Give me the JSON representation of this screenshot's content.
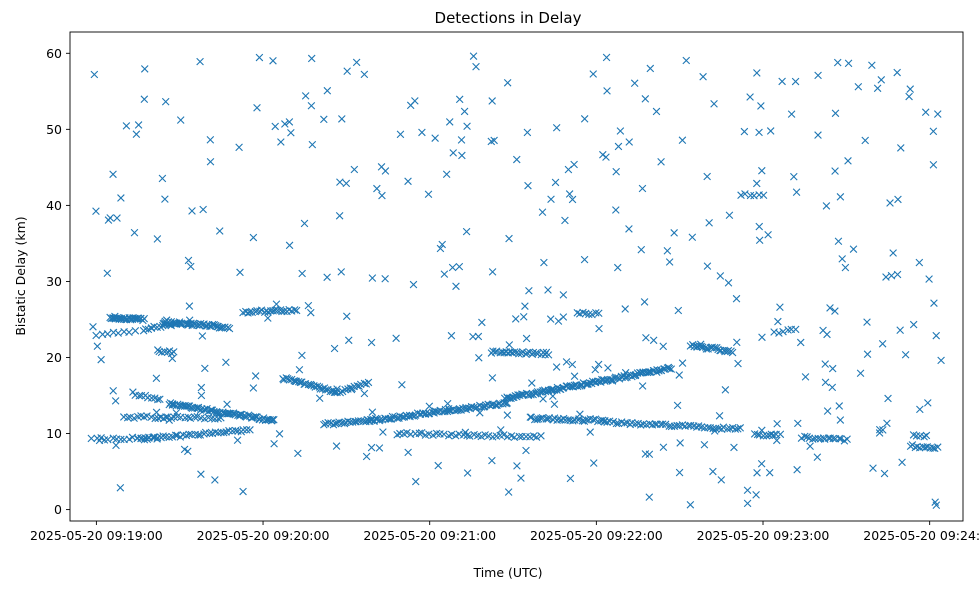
{
  "chart_data": {
    "type": "scatter",
    "title": "Detections in Delay",
    "xlabel": "Time (UTC)",
    "ylabel": "Bistatic Delay (km)",
    "marker": "x",
    "color": "#1f77b4",
    "x_unit": "seconds since 2025-05-20 09:19:00",
    "xlim": [
      -9.5,
      312
    ],
    "ylim": [
      -1.5,
      62.8
    ],
    "xticks": [
      {
        "value": 0,
        "label": "2025-05-20 09:19:00"
      },
      {
        "value": 60,
        "label": "2025-05-20 09:20:00"
      },
      {
        "value": 120,
        "label": "2025-05-20 09:21:00"
      },
      {
        "value": 180,
        "label": "2025-05-20 09:22:00"
      },
      {
        "value": 240,
        "label": "2025-05-20 09:23:00"
      },
      {
        "value": 300,
        "label": "2025-05-20 09:24:00"
      }
    ],
    "yticks": [
      {
        "value": 0,
        "label": "0"
      },
      {
        "value": 10,
        "label": "10"
      },
      {
        "value": 20,
        "label": "20"
      },
      {
        "value": 30,
        "label": "30"
      },
      {
        "value": 40,
        "label": "40"
      },
      {
        "value": 50,
        "label": "50"
      },
      {
        "value": 60,
        "label": "60"
      }
    ],
    "tracks": [
      {
        "t0": 5,
        "y0": 25.2,
        "t1": 17,
        "y1": 25.0,
        "n": 30
      },
      {
        "t0": 17,
        "y0": 23.6,
        "t1": 30,
        "y1": 24.6,
        "n": 14
      },
      {
        "t0": 24,
        "y0": 24.6,
        "t1": 44,
        "y1": 24.2,
        "n": 40
      },
      {
        "t0": 44,
        "y0": 24.0,
        "t1": 48,
        "y1": 23.8,
        "n": 6
      },
      {
        "t0": 53,
        "y0": 26.0,
        "t1": 72,
        "y1": 26.2,
        "n": 24
      },
      {
        "t0": 0,
        "y0": 23.0,
        "t1": 14,
        "y1": 23.4,
        "n": 8
      },
      {
        "t0": 13,
        "y0": 15.3,
        "t1": 23,
        "y1": 14.4,
        "n": 10
      },
      {
        "t0": 22,
        "y0": 20.9,
        "t1": 28,
        "y1": 20.6,
        "n": 8
      },
      {
        "t0": 26,
        "y0": 13.9,
        "t1": 64,
        "y1": 11.7,
        "n": 70
      },
      {
        "t0": 10,
        "y0": 12.2,
        "t1": 45,
        "y1": 12.0,
        "n": 30
      },
      {
        "t0": 0,
        "y0": 9.3,
        "t1": 22,
        "y1": 9.4,
        "n": 16
      },
      {
        "t0": 15,
        "y0": 9.3,
        "t1": 55,
        "y1": 10.4,
        "n": 40
      },
      {
        "t0": 67,
        "y0": 17.3,
        "t1": 86,
        "y1": 15.5,
        "n": 30
      },
      {
        "t0": 86,
        "y0": 15.4,
        "t1": 92,
        "y1": 15.9,
        "n": 8
      },
      {
        "t0": 92,
        "y0": 16.0,
        "t1": 98,
        "y1": 16.6,
        "n": 8
      },
      {
        "t0": 82,
        "y0": 11.2,
        "t1": 100,
        "y1": 11.8,
        "n": 24
      },
      {
        "t0": 98,
        "y0": 11.7,
        "t1": 148,
        "y1": 14.0,
        "n": 80
      },
      {
        "t0": 108,
        "y0": 10.0,
        "t1": 160,
        "y1": 9.6,
        "n": 40
      },
      {
        "t0": 142,
        "y0": 20.7,
        "t1": 163,
        "y1": 20.5,
        "n": 28
      },
      {
        "t0": 147,
        "y0": 14.6,
        "t1": 207,
        "y1": 18.6,
        "n": 110
      },
      {
        "t0": 156,
        "y0": 12.0,
        "t1": 183,
        "y1": 11.7,
        "n": 34
      },
      {
        "t0": 183,
        "y0": 11.5,
        "t1": 232,
        "y1": 10.6,
        "n": 50
      },
      {
        "t0": 173,
        "y0": 25.8,
        "t1": 181,
        "y1": 25.7,
        "n": 8
      },
      {
        "t0": 214,
        "y0": 21.6,
        "t1": 229,
        "y1": 20.8,
        "n": 24
      },
      {
        "t0": 237,
        "y0": 9.9,
        "t1": 246,
        "y1": 9.8,
        "n": 10
      },
      {
        "t0": 244,
        "y0": 23.3,
        "t1": 252,
        "y1": 23.6,
        "n": 6
      },
      {
        "t0": 232,
        "y0": 41.5,
        "t1": 240,
        "y1": 41.2,
        "n": 6
      },
      {
        "t0": 254,
        "y0": 9.5,
        "t1": 270,
        "y1": 9.1,
        "n": 18
      },
      {
        "t0": 293,
        "y0": 8.4,
        "t1": 303,
        "y1": 8.1,
        "n": 12
      },
      {
        "t0": 294,
        "y0": 9.8,
        "t1": 299,
        "y1": 9.6,
        "n": 5
      }
    ],
    "scatter": {
      "count": 380,
      "t_min": -2,
      "t_max": 306,
      "y_min": 0.5,
      "y_max": 60
    }
  }
}
